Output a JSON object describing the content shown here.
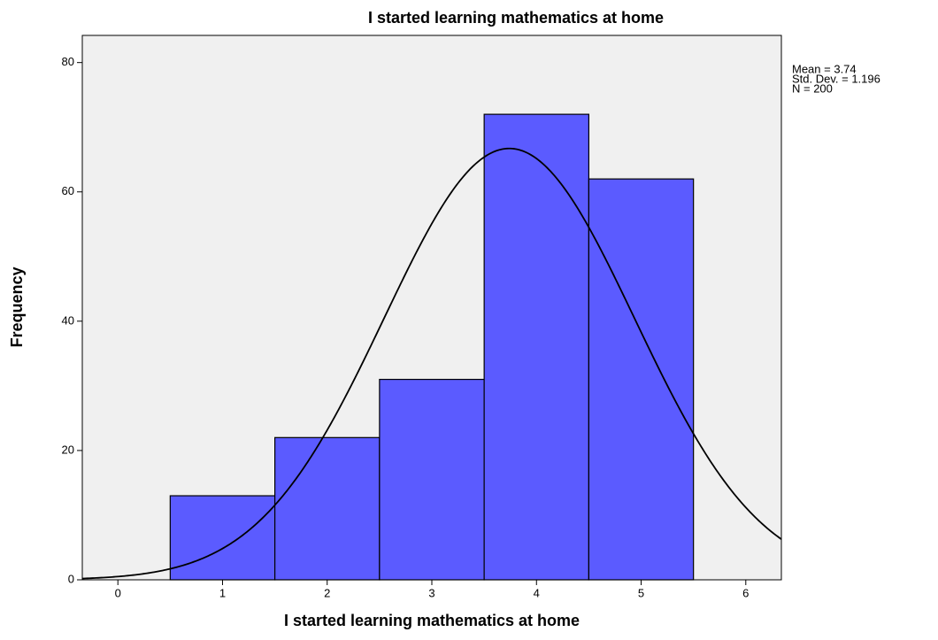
{
  "chart_data": {
    "type": "histogram",
    "title": "I started learning mathematics at home",
    "x_label": "I started learning mathematics at home",
    "y_label": "Frequency",
    "bins": [
      0.5,
      1.5,
      2.5,
      3.5,
      4.5,
      5.5
    ],
    "counts": [
      13,
      22,
      31,
      72,
      62
    ],
    "color": "#5b5bff",
    "xlim": [
      -0.34,
      6.34
    ],
    "xticks": [
      0,
      1,
      2,
      3,
      4,
      5,
      6
    ],
    "ylim": [
      0,
      84.2
    ],
    "yticks": [
      0,
      20,
      40,
      60,
      80
    ],
    "stats": [
      {
        "label": "Mean = 3.74",
        "value": 3.74
      },
      {
        "label": "Std. Dev. = 1.196",
        "value": 1.196
      },
      {
        "label": "N = 200",
        "value": 200
      }
    ]
  }
}
